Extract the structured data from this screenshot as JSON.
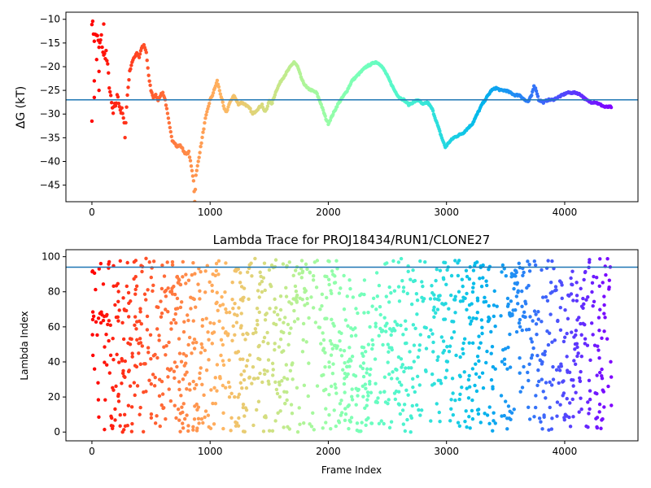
{
  "chart_data": [
    {
      "type": "scatter",
      "title": "",
      "xlabel": "",
      "ylabel": "ΔG (kT)",
      "xlim": [
        -220,
        4620
      ],
      "ylim": [
        -48.5,
        -8.5
      ],
      "xticks": [
        0,
        1000,
        2000,
        3000,
        4000
      ],
      "yticks": [
        -10,
        -15,
        -20,
        -25,
        -30,
        -35,
        -40,
        -45
      ],
      "xtick_labels": [
        "0",
        "1000",
        "2000",
        "3000",
        "4000"
      ],
      "ytick_labels": [
        "−10",
        "−15",
        "−20",
        "−25",
        "−30",
        "−35",
        "−40",
        "−45"
      ],
      "hline": -27.0,
      "hline_color": "#1f77b4",
      "colormap": "rainbow (red at start → violet at end)",
      "grid": false,
      "legend": "none",
      "trace": [
        [
          0,
          -10
        ],
        [
          20,
          -14
        ],
        [
          40,
          -13
        ],
        [
          60,
          -16
        ],
        [
          80,
          -14
        ],
        [
          100,
          -18
        ],
        [
          120,
          -17
        ],
        [
          140,
          -22
        ],
        [
          160,
          -27
        ],
        [
          180,
          -30
        ],
        [
          200,
          -28
        ],
        [
          220,
          -26
        ],
        [
          240,
          -29
        ],
        [
          260,
          -30
        ],
        [
          280,
          -34
        ],
        [
          300,
          -26
        ],
        [
          320,
          -21
        ],
        [
          340,
          -19
        ],
        [
          360,
          -18
        ],
        [
          380,
          -17
        ],
        [
          400,
          -18
        ],
        [
          420,
          -16
        ],
        [
          440,
          -15.5
        ],
        [
          460,
          -17
        ],
        [
          480,
          -22
        ],
        [
          500,
          -25
        ],
        [
          520,
          -26.5
        ],
        [
          540,
          -26
        ],
        [
          560,
          -27
        ],
        [
          580,
          -26
        ],
        [
          600,
          -25.5
        ],
        [
          620,
          -27
        ],
        [
          640,
          -30
        ],
        [
          660,
          -33
        ],
        [
          680,
          -35.5
        ],
        [
          700,
          -36
        ],
        [
          720,
          -37
        ],
        [
          740,
          -36.5
        ],
        [
          760,
          -37
        ],
        [
          780,
          -38
        ],
        [
          800,
          -38.5
        ],
        [
          820,
          -38
        ],
        [
          840,
          -41
        ],
        [
          860,
          -44
        ],
        [
          870,
          -48.5
        ],
        [
          880,
          -43
        ],
        [
          900,
          -40
        ],
        [
          920,
          -37
        ],
        [
          940,
          -34
        ],
        [
          960,
          -31
        ],
        [
          980,
          -29
        ],
        [
          1000,
          -27
        ],
        [
          1020,
          -26
        ],
        [
          1040,
          -24.5
        ],
        [
          1060,
          -23
        ],
        [
          1080,
          -25
        ],
        [
          1100,
          -27
        ],
        [
          1120,
          -29
        ],
        [
          1140,
          -29.5
        ],
        [
          1160,
          -28
        ],
        [
          1180,
          -27
        ],
        [
          1200,
          -26
        ],
        [
          1220,
          -27
        ],
        [
          1240,
          -28
        ],
        [
          1260,
          -27.5
        ],
        [
          1300,
          -28
        ],
        [
          1340,
          -29
        ],
        [
          1360,
          -30
        ],
        [
          1400,
          -29
        ],
        [
          1440,
          -28
        ],
        [
          1460,
          -29.5
        ],
        [
          1480,
          -29
        ],
        [
          1500,
          -27
        ],
        [
          1520,
          -28
        ],
        [
          1560,
          -25
        ],
        [
          1600,
          -23
        ],
        [
          1640,
          -21.5
        ],
        [
          1680,
          -20
        ],
        [
          1710,
          -19
        ],
        [
          1740,
          -20
        ],
        [
          1780,
          -23
        ],
        [
          1820,
          -24.5
        ],
        [
          1860,
          -25
        ],
        [
          1900,
          -25.5
        ],
        [
          1940,
          -28
        ],
        [
          1980,
          -31
        ],
        [
          2000,
          -32
        ],
        [
          2040,
          -30
        ],
        [
          2080,
          -28
        ],
        [
          2120,
          -26.5
        ],
        [
          2160,
          -25
        ],
        [
          2200,
          -23
        ],
        [
          2240,
          -22
        ],
        [
          2280,
          -21
        ],
        [
          2320,
          -20
        ],
        [
          2360,
          -19.5
        ],
        [
          2400,
          -19
        ],
        [
          2440,
          -19.5
        ],
        [
          2480,
          -21
        ],
        [
          2520,
          -23
        ],
        [
          2560,
          -25
        ],
        [
          2600,
          -26.5
        ],
        [
          2640,
          -27
        ],
        [
          2680,
          -28
        ],
        [
          2720,
          -27.5
        ],
        [
          2760,
          -27
        ],
        [
          2800,
          -28
        ],
        [
          2840,
          -27.5
        ],
        [
          2880,
          -29
        ],
        [
          2920,
          -32
        ],
        [
          2960,
          -35
        ],
        [
          2990,
          -37
        ],
        [
          3020,
          -36
        ],
        [
          3060,
          -35
        ],
        [
          3100,
          -34.5
        ],
        [
          3140,
          -34
        ],
        [
          3180,
          -33
        ],
        [
          3220,
          -32
        ],
        [
          3260,
          -30
        ],
        [
          3300,
          -28
        ],
        [
          3340,
          -26.5
        ],
        [
          3380,
          -25
        ],
        [
          3420,
          -24.5
        ],
        [
          3460,
          -25
        ],
        [
          3500,
          -25
        ],
        [
          3540,
          -25.5
        ],
        [
          3580,
          -26
        ],
        [
          3620,
          -26
        ],
        [
          3660,
          -27
        ],
        [
          3690,
          -27.5
        ],
        [
          3720,
          -26
        ],
        [
          3740,
          -24
        ],
        [
          3760,
          -25
        ],
        [
          3780,
          -27
        ],
        [
          3820,
          -27.5
        ],
        [
          3860,
          -27
        ],
        [
          3900,
          -27
        ],
        [
          3940,
          -26.5
        ],
        [
          3980,
          -26
        ],
        [
          4020,
          -25.5
        ],
        [
          4060,
          -25.5
        ],
        [
          4100,
          -25.5
        ],
        [
          4140,
          -26
        ],
        [
          4180,
          -27
        ],
        [
          4220,
          -27.5
        ],
        [
          4260,
          -27.5
        ],
        [
          4300,
          -28
        ],
        [
          4340,
          -28.5
        ],
        [
          4380,
          -28.5
        ],
        [
          4400,
          -28.5
        ]
      ],
      "outliers": [
        [
          0,
          -31.5
        ],
        [
          20,
          -26.5
        ],
        [
          40,
          -18.5
        ],
        [
          60,
          -25
        ],
        [
          100,
          -11
        ],
        [
          20,
          -23
        ],
        [
          60,
          -21
        ]
      ]
    },
    {
      "type": "scatter",
      "title": "Lambda Trace for PROJ18434/RUN1/CLONE27",
      "xlabel": "Frame Index",
      "ylabel": "Lambda Index",
      "xlim": [
        -220,
        4620
      ],
      "ylim": [
        -5,
        104
      ],
      "xticks": [
        0,
        1000,
        2000,
        3000,
        4000
      ],
      "yticks": [
        0,
        20,
        40,
        60,
        80,
        100
      ],
      "xtick_labels": [
        "0",
        "1000",
        "2000",
        "3000",
        "4000"
      ],
      "ytick_labels": [
        "0",
        "20",
        "40",
        "60",
        "80",
        "100"
      ],
      "hline": 94,
      "hline_color": "#1f77b4",
      "colormap": "rainbow (red at start → violet at end)",
      "grid": false,
      "legend": "none",
      "frame_range": [
        0,
        4400
      ],
      "lambda_range": [
        0,
        99
      ],
      "sampling": "dense random walk; higher density at high lambda in mid-run bands near 1800, 2950, 3600 and low density gaps near 1900, 2850"
    }
  ]
}
